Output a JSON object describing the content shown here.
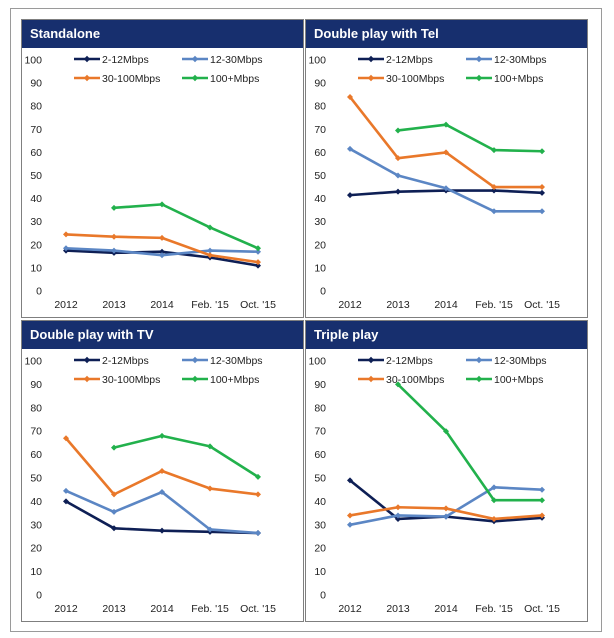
{
  "chart_data": [
    {
      "type": "line",
      "title": "Standalone",
      "categories": [
        "2012",
        "2013",
        "2014",
        "Feb. '15",
        "Oct. '15"
      ],
      "ylim": [
        0,
        100
      ],
      "yticks": [
        0,
        10,
        20,
        30,
        40,
        50,
        60,
        70,
        80,
        90,
        100
      ],
      "grid": false,
      "legend": "top",
      "series": [
        {
          "name": "2-12Mbps",
          "color": "#0e1f55",
          "values": [
            17.5,
            16.5,
            17,
            14.5,
            11
          ]
        },
        {
          "name": "12-30Mbps",
          "color": "#5b86c4",
          "values": [
            18.5,
            17.5,
            15.5,
            17.5,
            17
          ]
        },
        {
          "name": "30-100Mbps",
          "color": "#e9782a",
          "values": [
            24.5,
            23.5,
            23,
            15.5,
            12.5
          ]
        },
        {
          "name": "100+Mbps",
          "color": "#22b14c",
          "values": [
            null,
            36,
            37.5,
            27.5,
            18.5
          ]
        }
      ]
    },
    {
      "type": "line",
      "title": "Double  play with Tel",
      "categories": [
        "2012",
        "2013",
        "2014",
        "Feb. '15",
        "Oct. '15"
      ],
      "ylim": [
        0,
        100
      ],
      "yticks": [
        0,
        10,
        20,
        30,
        40,
        50,
        60,
        70,
        80,
        90,
        100
      ],
      "grid": false,
      "legend": "top",
      "series": [
        {
          "name": "2-12Mbps",
          "color": "#0e1f55",
          "values": [
            41.5,
            43,
            43.5,
            43.5,
            42.5
          ]
        },
        {
          "name": "12-30Mbps",
          "color": "#5b86c4",
          "values": [
            61.5,
            50,
            44.5,
            34.5,
            34.5
          ]
        },
        {
          "name": "30-100Mbps",
          "color": "#e9782a",
          "values": [
            84,
            57.5,
            60,
            45,
            45
          ]
        },
        {
          "name": "100+Mbps",
          "color": "#22b14c",
          "values": [
            null,
            69.5,
            72,
            61,
            60.5
          ]
        }
      ]
    },
    {
      "type": "line",
      "title": "Double play with TV",
      "categories": [
        "2012",
        "2013",
        "2014",
        "Feb. '15",
        "Oct. '15"
      ],
      "ylim": [
        0,
        100
      ],
      "yticks": [
        0,
        10,
        20,
        30,
        40,
        50,
        60,
        70,
        80,
        90,
        100
      ],
      "grid": false,
      "legend": "top",
      "series": [
        {
          "name": "2-12Mbps",
          "color": "#0e1f55",
          "values": [
            40,
            28.5,
            27.5,
            27,
            26.5
          ]
        },
        {
          "name": "12-30Mbps",
          "color": "#5b86c4",
          "values": [
            44.5,
            35.5,
            44,
            28,
            26.5
          ]
        },
        {
          "name": "30-100Mbps",
          "color": "#e9782a",
          "values": [
            67,
            43,
            53,
            45.5,
            43
          ]
        },
        {
          "name": "100+Mbps",
          "color": "#22b14c",
          "values": [
            null,
            63,
            68,
            63.5,
            50.5
          ]
        }
      ]
    },
    {
      "type": "line",
      "title": "Triple play",
      "categories": [
        "2012",
        "2013",
        "2014",
        "Feb. '15",
        "Oct. '15"
      ],
      "ylim": [
        0,
        100
      ],
      "yticks": [
        0,
        10,
        20,
        30,
        40,
        50,
        60,
        70,
        80,
        90,
        100
      ],
      "grid": false,
      "legend": "top",
      "series": [
        {
          "name": "2-12Mbps",
          "color": "#0e1f55",
          "values": [
            49,
            32.5,
            33.5,
            31.5,
            33
          ]
        },
        {
          "name": "12-30Mbps",
          "color": "#5b86c4",
          "values": [
            30,
            34,
            33.5,
            46,
            45
          ]
        },
        {
          "name": "30-100Mbps",
          "color": "#e9782a",
          "values": [
            34,
            37.5,
            37,
            32.5,
            34
          ]
        },
        {
          "name": "100+Mbps",
          "color": "#22b14c",
          "values": [
            null,
            90,
            70,
            40.5,
            40.5
          ]
        }
      ]
    }
  ]
}
